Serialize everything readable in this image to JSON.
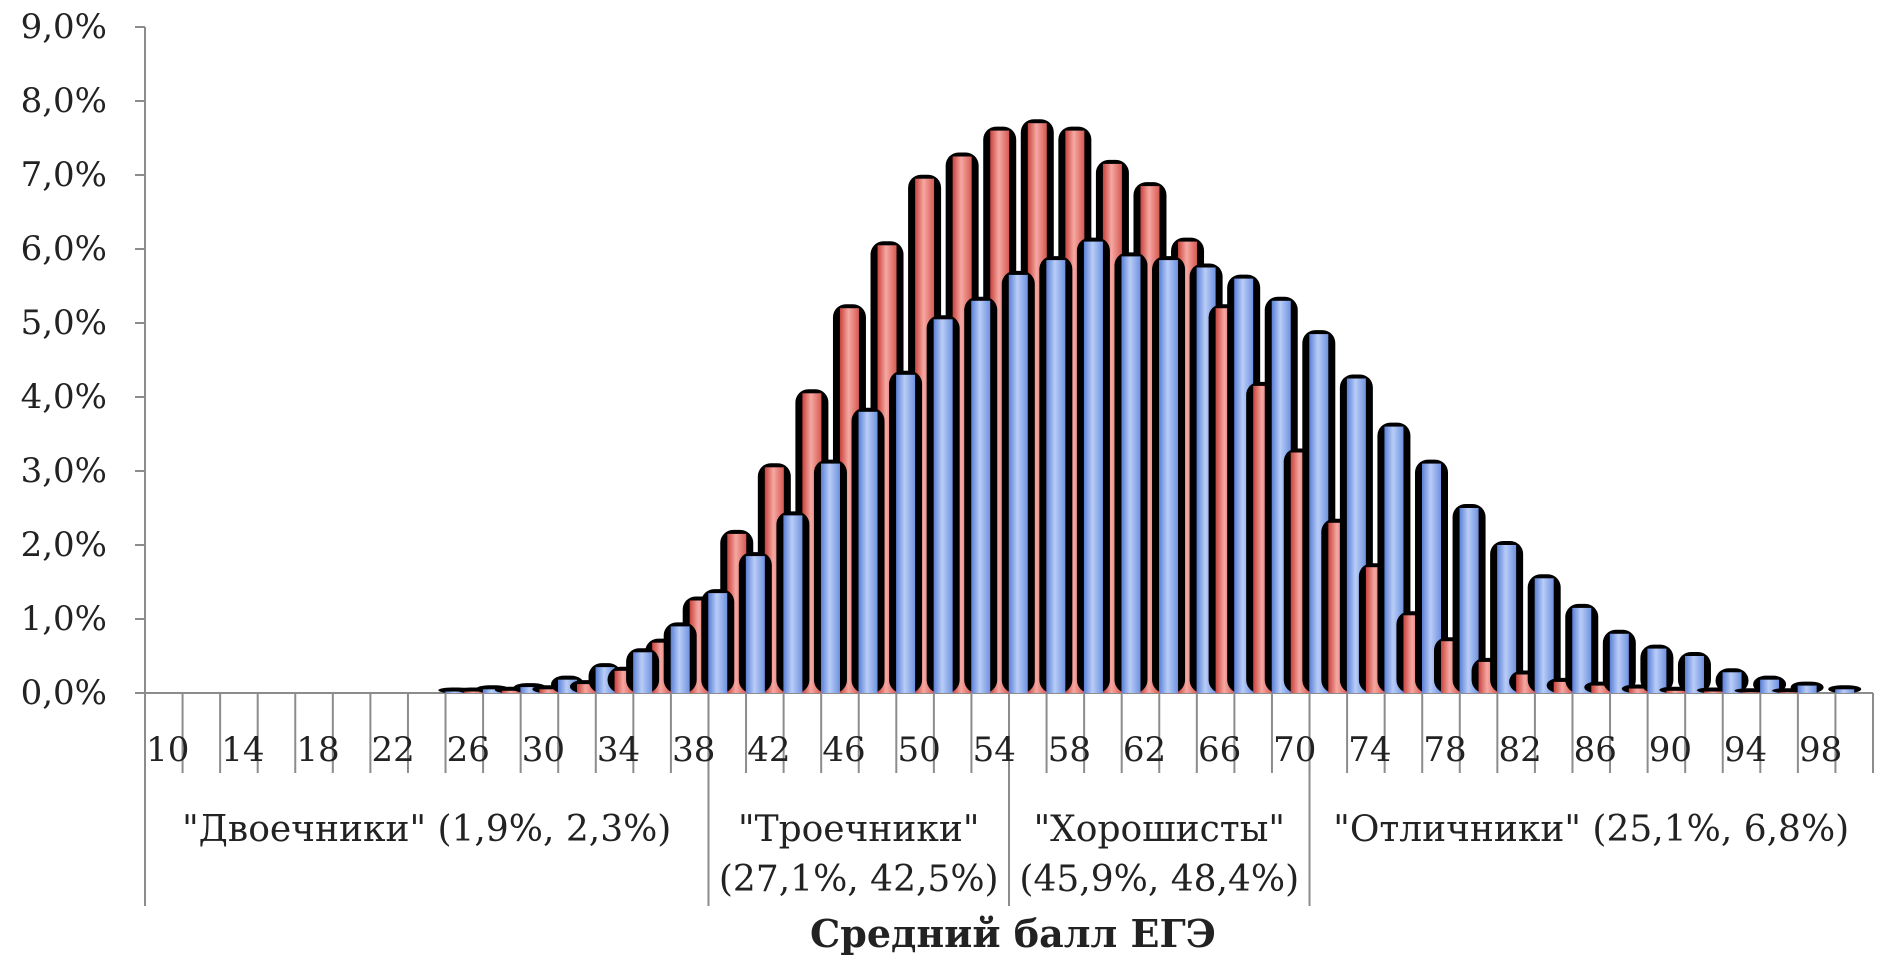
{
  "chart_data": {
    "type": "bar",
    "xlabel": "Средний балл ЕГЭ",
    "ylabel": "",
    "ylim": [
      0,
      9
    ],
    "y_ticks": [
      "0,0%",
      "1,0%",
      "2,0%",
      "3,0%",
      "4,0%",
      "5,0%",
      "6,0%",
      "7,0%",
      "8,0%",
      "9,0%"
    ],
    "x_tick_labels": [
      "10",
      "14",
      "18",
      "22",
      "26",
      "30",
      "34",
      "38",
      "42",
      "46",
      "50",
      "54",
      "58",
      "62",
      "66",
      "70",
      "74",
      "78",
      "82",
      "86",
      "90",
      "94",
      "98"
    ],
    "categories": [
      "10",
      "12",
      "14",
      "16",
      "18",
      "20",
      "22",
      "24",
      "26",
      "28",
      "30",
      "32",
      "34",
      "36",
      "38",
      "40",
      "42",
      "44",
      "46",
      "48",
      "50",
      "52",
      "54",
      "56",
      "58",
      "60",
      "62",
      "64",
      "66",
      "68",
      "70",
      "72",
      "74",
      "76",
      "78",
      "80",
      "82",
      "84",
      "86",
      "88",
      "90",
      "92",
      "94",
      "96",
      "98",
      "100"
    ],
    "series": [
      {
        "color": "#8fb0f0",
        "values": [
          0,
          0,
          0,
          0,
          0,
          0,
          0,
          0,
          0.02,
          0.05,
          0.08,
          0.18,
          0.35,
          0.55,
          0.9,
          1.35,
          1.85,
          2.4,
          3.1,
          3.8,
          4.3,
          5.05,
          5.3,
          5.65,
          5.85,
          6.1,
          5.9,
          5.85,
          5.75,
          5.6,
          5.3,
          4.85,
          4.25,
          3.6,
          3.1,
          2.5,
          2.0,
          1.55,
          1.15,
          0.8,
          0.6,
          0.5,
          0.28,
          0.18,
          0.1,
          0.05
        ]
      },
      {
        "color": "#e87b74",
        "values": [
          0,
          0,
          0,
          0,
          0,
          0,
          0,
          0,
          0.02,
          0.03,
          0.05,
          0.12,
          0.3,
          0.68,
          1.25,
          2.15,
          3.05,
          4.05,
          5.2,
          6.05,
          6.95,
          7.25,
          7.6,
          7.7,
          7.6,
          7.15,
          6.85,
          6.1,
          5.2,
          4.15,
          3.25,
          2.3,
          1.7,
          1.05,
          0.7,
          0.42,
          0.25,
          0.15,
          0.1,
          0.06,
          0.03,
          0.02,
          0.01,
          0.01,
          0,
          0
        ]
      }
    ],
    "groups": [
      {
        "line1": "\"Двоечники\" (1,9%, 2,3%)",
        "line2": ""
      },
      {
        "line1": "\"Троечники\"",
        "line2": "(27,1%, 42,5%)"
      },
      {
        "line1": "\"Хорошисты\"",
        "line2": "(45,9%, 48,4%)"
      },
      {
        "line1": "\"Отличники\" (25,1%, 6,8%)",
        "line2": ""
      }
    ],
    "grid": false,
    "legend": "none"
  }
}
